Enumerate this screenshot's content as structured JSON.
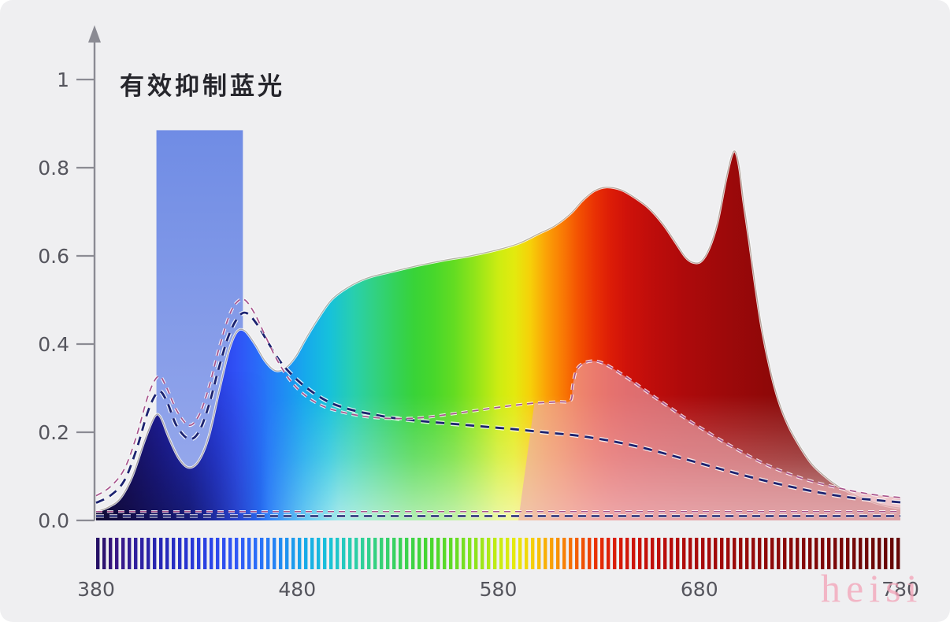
{
  "page": {
    "title": "有效抑制蓝光",
    "watermark": "heisi",
    "background": "#efeff1"
  },
  "colors": {
    "axis": "#8b8b93",
    "tick_label": "#55555d",
    "title_text": "#26262c",
    "navy_dash": "#1c2370",
    "pink_dash": "#a8538c",
    "dash_casing": "#ffffff",
    "blue_band_top": "#6987e4",
    "blue_band_bottom": "#95a7ec",
    "pink_fill": "rgba(236,168,175,0.62)",
    "edge_line": "rgba(60,45,25,0.35)",
    "edge_halo": "rgba(255,255,255,0.85)",
    "watermark_pink": "rgba(242,166,186,0.8)"
  },
  "chart_data": {
    "type": "area",
    "title": "有效抑制蓝光",
    "x_axis": {
      "label": "wavelength_nm",
      "range": [
        380,
        780
      ],
      "ticks": [
        {
          "value": 380,
          "label": "380"
        },
        {
          "value": 480,
          "label": "480"
        },
        {
          "value": 580,
          "label": "580"
        },
        {
          "value": 680,
          "label": "680"
        },
        {
          "value": 780,
          "label": "780"
        }
      ]
    },
    "y_axis": {
      "label": "relative_intensity",
      "range": [
        0,
        1
      ],
      "ticks": [
        {
          "value": 0,
          "label": "0.0"
        },
        {
          "value": 0.2,
          "label": "0.2"
        },
        {
          "value": 0.4,
          "label": "0.4"
        },
        {
          "value": 0.6,
          "label": "0.6"
        },
        {
          "value": 0.8,
          "label": "0.8"
        },
        {
          "value": 1,
          "label": "1"
        }
      ]
    },
    "grid": false,
    "legend": false,
    "suppressed_band": {
      "from_nm": 410,
      "to_nm": 453,
      "top_value": 0.885
    },
    "series": [
      {
        "name": "main_spectrum",
        "style": "filled_rainbow_area",
        "points": [
          [
            380,
            0.02
          ],
          [
            386,
            0.03
          ],
          [
            392,
            0.05
          ],
          [
            398,
            0.1
          ],
          [
            404,
            0.18
          ],
          [
            409,
            0.235
          ],
          [
            412,
            0.235
          ],
          [
            416,
            0.19
          ],
          [
            421,
            0.142
          ],
          [
            426,
            0.12
          ],
          [
            431,
            0.135
          ],
          [
            436,
            0.19
          ],
          [
            441,
            0.29
          ],
          [
            446,
            0.385
          ],
          [
            450,
            0.428
          ],
          [
            454,
            0.43
          ],
          [
            459,
            0.4
          ],
          [
            464,
            0.362
          ],
          [
            469,
            0.34
          ],
          [
            474,
            0.345
          ],
          [
            479,
            0.37
          ],
          [
            484,
            0.41
          ],
          [
            490,
            0.455
          ],
          [
            497,
            0.5
          ],
          [
            505,
            0.528
          ],
          [
            515,
            0.55
          ],
          [
            528,
            0.565
          ],
          [
            540,
            0.578
          ],
          [
            553,
            0.59
          ],
          [
            566,
            0.6
          ],
          [
            578,
            0.612
          ],
          [
            590,
            0.628
          ],
          [
            600,
            0.65
          ],
          [
            608,
            0.668
          ],
          [
            616,
            0.696
          ],
          [
            622,
            0.726
          ],
          [
            628,
            0.748
          ],
          [
            634,
            0.756
          ],
          [
            641,
            0.75
          ],
          [
            648,
            0.732
          ],
          [
            655,
            0.708
          ],
          [
            662,
            0.672
          ],
          [
            668,
            0.632
          ],
          [
            673,
            0.598
          ],
          [
            677,
            0.585
          ],
          [
            681,
            0.588
          ],
          [
            685,
            0.618
          ],
          [
            689,
            0.675
          ],
          [
            693,
            0.768
          ],
          [
            696,
            0.826
          ],
          [
            698,
            0.836
          ],
          [
            700,
            0.798
          ],
          [
            702,
            0.724
          ],
          [
            705,
            0.628
          ],
          [
            708,
            0.528
          ],
          [
            711,
            0.438
          ],
          [
            715,
            0.348
          ],
          [
            719,
            0.278
          ],
          [
            724,
            0.218
          ],
          [
            730,
            0.168
          ],
          [
            736,
            0.128
          ],
          [
            743,
            0.098
          ],
          [
            750,
            0.075
          ],
          [
            758,
            0.056
          ],
          [
            766,
            0.042
          ],
          [
            773,
            0.033
          ],
          [
            780,
            0.028
          ]
        ]
      },
      {
        "name": "reference_dashed_navy",
        "style": "dashed_navy",
        "points": [
          [
            380,
            0.04
          ],
          [
            387,
            0.056
          ],
          [
            394,
            0.09
          ],
          [
            400,
            0.16
          ],
          [
            406,
            0.25
          ],
          [
            411,
            0.292
          ],
          [
            415,
            0.272
          ],
          [
            420,
            0.215
          ],
          [
            426,
            0.185
          ],
          [
            431,
            0.2
          ],
          [
            436,
            0.26
          ],
          [
            441,
            0.345
          ],
          [
            446,
            0.42
          ],
          [
            451,
            0.463
          ],
          [
            455,
            0.47
          ],
          [
            460,
            0.445
          ],
          [
            466,
            0.4
          ],
          [
            472,
            0.358
          ],
          [
            479,
            0.323
          ],
          [
            487,
            0.293
          ],
          [
            496,
            0.268
          ],
          [
            506,
            0.252
          ],
          [
            517,
            0.241
          ],
          [
            530,
            0.231
          ],
          [
            545,
            0.224
          ],
          [
            560,
            0.218
          ],
          [
            575,
            0.212
          ],
          [
            590,
            0.206
          ],
          [
            605,
            0.199
          ],
          [
            620,
            0.192
          ],
          [
            635,
            0.181
          ],
          [
            650,
            0.167
          ],
          [
            665,
            0.149
          ],
          [
            680,
            0.13
          ],
          [
            695,
            0.111
          ],
          [
            710,
            0.093
          ],
          [
            725,
            0.077
          ],
          [
            740,
            0.063
          ],
          [
            755,
            0.052
          ],
          [
            768,
            0.046
          ],
          [
            780,
            0.041
          ]
        ]
      },
      {
        "name": "reference_dashed_pink",
        "style": "dashed_pink",
        "fill_from_nm": 590,
        "points": [
          [
            380,
            0.056
          ],
          [
            387,
            0.076
          ],
          [
            394,
            0.116
          ],
          [
            400,
            0.19
          ],
          [
            406,
            0.285
          ],
          [
            411,
            0.327
          ],
          [
            415,
            0.302
          ],
          [
            420,
            0.25
          ],
          [
            426,
            0.216
          ],
          [
            431,
            0.237
          ],
          [
            436,
            0.3
          ],
          [
            441,
            0.388
          ],
          [
            446,
            0.462
          ],
          [
            450,
            0.495
          ],
          [
            454,
            0.5
          ],
          [
            459,
            0.468
          ],
          [
            464,
            0.42
          ],
          [
            470,
            0.364
          ],
          [
            477,
            0.315
          ],
          [
            485,
            0.28
          ],
          [
            494,
            0.257
          ],
          [
            504,
            0.244
          ],
          [
            515,
            0.235
          ],
          [
            528,
            0.231
          ],
          [
            542,
            0.233
          ],
          [
            556,
            0.241
          ],
          [
            570,
            0.25
          ],
          [
            584,
            0.259
          ],
          [
            598,
            0.266
          ],
          [
            610,
            0.269
          ],
          [
            616,
            0.272
          ],
          [
            617,
            0.305
          ],
          [
            619,
            0.342
          ],
          [
            623,
            0.358
          ],
          [
            629,
            0.361
          ],
          [
            635,
            0.35
          ],
          [
            642,
            0.33
          ],
          [
            650,
            0.305
          ],
          [
            658,
            0.279
          ],
          [
            666,
            0.254
          ],
          [
            674,
            0.229
          ],
          [
            682,
            0.206
          ],
          [
            690,
            0.184
          ],
          [
            698,
            0.163
          ],
          [
            706,
            0.143
          ],
          [
            714,
            0.125
          ],
          [
            722,
            0.11
          ],
          [
            730,
            0.097
          ],
          [
            739,
            0.085
          ],
          [
            748,
            0.075
          ],
          [
            757,
            0.066
          ],
          [
            766,
            0.059
          ],
          [
            773,
            0.055
          ],
          [
            780,
            0.052
          ]
        ]
      },
      {
        "name": "suppressed_baseline_navy",
        "style": "dashed_navy_thin",
        "points": [
          [
            380,
            0.01
          ],
          [
            580,
            0.01
          ],
          [
            780,
            0.01
          ]
        ]
      },
      {
        "name": "suppressed_baseline_pink",
        "style": "dashed_pink_thin",
        "points": [
          [
            380,
            0.02
          ],
          [
            580,
            0.02
          ],
          [
            780,
            0.02
          ]
        ]
      }
    ],
    "spectrum_gradient": [
      [
        0,
        "#191150"
      ],
      [
        4,
        "#1d1478"
      ],
      [
        8,
        "#2020a6"
      ],
      [
        12,
        "#2531d4"
      ],
      [
        15,
        "#2a40e8"
      ],
      [
        17.5,
        "#3052f6"
      ],
      [
        20,
        "#2a6af8"
      ],
      [
        23,
        "#2089f4"
      ],
      [
        26,
        "#16a9ec"
      ],
      [
        29,
        "#16c1db"
      ],
      [
        32,
        "#28cfae"
      ],
      [
        34.5,
        "#31d185"
      ],
      [
        37,
        "#33d25c"
      ],
      [
        39.5,
        "#38d338"
      ],
      [
        42,
        "#47d72b"
      ],
      [
        44.5,
        "#63dc22"
      ],
      [
        47,
        "#8fe41a"
      ],
      [
        50,
        "#ccec12"
      ],
      [
        52,
        "#e3ea0e"
      ],
      [
        54,
        "#f6d009"
      ],
      [
        56,
        "#fba106"
      ],
      [
        58,
        "#f97a04"
      ],
      [
        60,
        "#f35102"
      ],
      [
        62,
        "#e93104"
      ],
      [
        64,
        "#dc1c07"
      ],
      [
        66,
        "#cf120a"
      ],
      [
        69,
        "#bf0d0b"
      ],
      [
        73,
        "#ae0a0b"
      ],
      [
        78,
        "#9e090a"
      ],
      [
        84,
        "#8e0808"
      ],
      [
        91,
        "#7e0707"
      ],
      [
        100,
        "#6e0606"
      ]
    ],
    "strip_gradient": [
      [
        0,
        "#241064"
      ],
      [
        2.5,
        "#3a1684"
      ],
      [
        5,
        "#30219e"
      ],
      [
        8,
        "#2626b4"
      ],
      [
        12,
        "#2838d8"
      ],
      [
        15,
        "#2c49ec"
      ],
      [
        17.5,
        "#3158f6"
      ],
      [
        20,
        "#2b6ef8"
      ],
      [
        23,
        "#218bf2"
      ],
      [
        26,
        "#17aae8"
      ],
      [
        29,
        "#19c2d8"
      ],
      [
        32,
        "#2bcfac"
      ],
      [
        35,
        "#35d17c"
      ],
      [
        38,
        "#38d254"
      ],
      [
        41,
        "#44d632"
      ],
      [
        44,
        "#5eda26"
      ],
      [
        47,
        "#8ae31c"
      ],
      [
        50,
        "#c6ec12"
      ],
      [
        52,
        "#e5ea0e"
      ],
      [
        54,
        "#f4d409"
      ],
      [
        56,
        "#f9ae06"
      ],
      [
        58,
        "#f88404"
      ],
      [
        60,
        "#f25a02"
      ],
      [
        62,
        "#e93504"
      ],
      [
        64,
        "#dc1f07"
      ],
      [
        67,
        "#cc130a"
      ],
      [
        70,
        "#bd0e0b"
      ],
      [
        74,
        "#ac0b0b"
      ],
      [
        79,
        "#9c0a0a"
      ],
      [
        85,
        "#8c0909"
      ],
      [
        92,
        "#7b0808"
      ],
      [
        100,
        "#650606"
      ]
    ]
  }
}
